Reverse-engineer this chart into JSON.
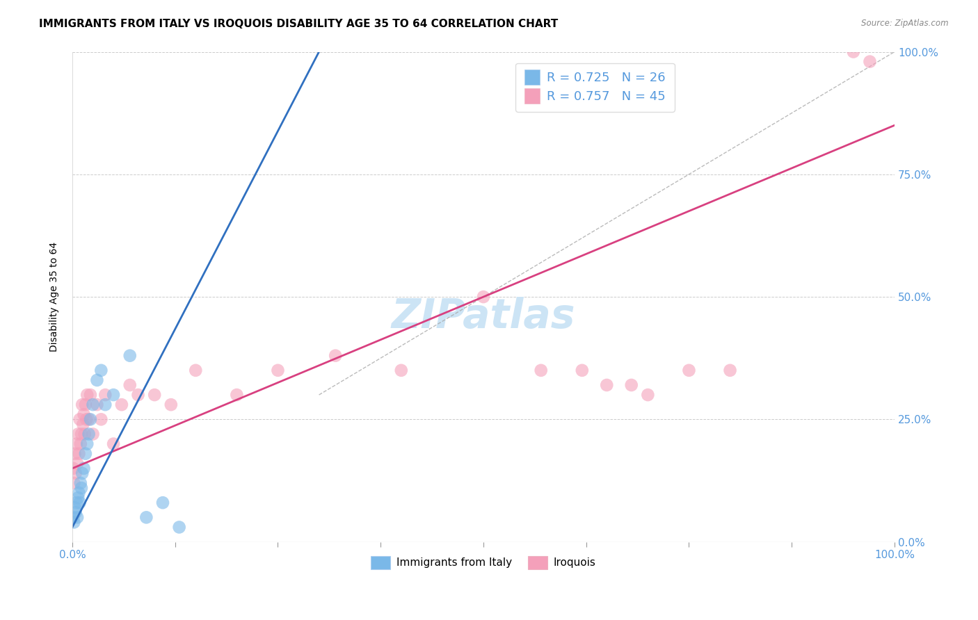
{
  "title": "IMMIGRANTS FROM ITALY VS IROQUOIS DISABILITY AGE 35 TO 64 CORRELATION CHART",
  "source": "Source: ZipAtlas.com",
  "ylabel": "Disability Age 35 to 64",
  "legend_label_blue": "Immigrants from Italy",
  "legend_label_pink": "Iroquois",
  "r_blue": 0.725,
  "n_blue": 26,
  "r_pink": 0.757,
  "n_pink": 45,
  "blue_color": "#7ab8e8",
  "pink_color": "#f4a0ba",
  "blue_line_color": "#3070c0",
  "pink_line_color": "#d84080",
  "watermark": "ZIPatlas",
  "blue_scatter_x": [
    0.1,
    0.2,
    0.3,
    0.4,
    0.5,
    0.6,
    0.7,
    0.8,
    0.9,
    1.0,
    1.1,
    1.2,
    1.4,
    1.6,
    1.8,
    2.0,
    2.2,
    2.5,
    3.0,
    3.5,
    4.0,
    5.0,
    7.0,
    9.0,
    11.0,
    13.0
  ],
  "blue_scatter_y": [
    5,
    4,
    7,
    6,
    8,
    5,
    9,
    10,
    8,
    12,
    11,
    14,
    15,
    18,
    20,
    22,
    25,
    28,
    33,
    35,
    28,
    30,
    38,
    5,
    8,
    3
  ],
  "pink_scatter_x": [
    0.1,
    0.2,
    0.3,
    0.4,
    0.5,
    0.6,
    0.7,
    0.8,
    0.9,
    1.0,
    1.1,
    1.2,
    1.3,
    1.4,
    1.5,
    1.6,
    1.7,
    1.8,
    2.0,
    2.2,
    2.5,
    3.0,
    3.5,
    4.0,
    5.0,
    6.0,
    7.0,
    8.0,
    10.0,
    12.0,
    15.0,
    20.0,
    25.0,
    32.0,
    40.0,
    50.0,
    57.0,
    62.0,
    65.0,
    68.0,
    70.0,
    75.0,
    80.0,
    95.0,
    97.0
  ],
  "pink_scatter_y": [
    15,
    12,
    18,
    14,
    20,
    16,
    22,
    18,
    25,
    20,
    22,
    28,
    24,
    26,
    22,
    28,
    25,
    30,
    25,
    30,
    22,
    28,
    25,
    30,
    20,
    28,
    32,
    30,
    30,
    28,
    35,
    30,
    35,
    38,
    35,
    50,
    35,
    35,
    32,
    32,
    30,
    35,
    35,
    100,
    98
  ],
  "blue_line_x": [
    0,
    30
  ],
  "blue_line_y": [
    3,
    100
  ],
  "pink_line_x": [
    0,
    100
  ],
  "pink_line_y": [
    15,
    85
  ],
  "diag_line_x": [
    30,
    100
  ],
  "diag_line_y": [
    30,
    100
  ],
  "xmin": 0,
  "xmax": 100,
  "ymin": 0,
  "ymax": 100,
  "xtick_positions": [
    0,
    12.5,
    25,
    37.5,
    50,
    62.5,
    75,
    87.5,
    100
  ],
  "xtick_labels_show": [
    true,
    false,
    false,
    false,
    false,
    false,
    false,
    false,
    true
  ],
  "ytick_positions": [
    0,
    25,
    50,
    75,
    100
  ],
  "grid_color": "#cccccc",
  "background_color": "#ffffff",
  "title_fontsize": 11,
  "axis_label_fontsize": 10,
  "tick_fontsize": 11,
  "legend_fontsize": 13,
  "watermark_fontsize": 42,
  "watermark_color": "#cce4f5",
  "tick_color": "#5599dd"
}
